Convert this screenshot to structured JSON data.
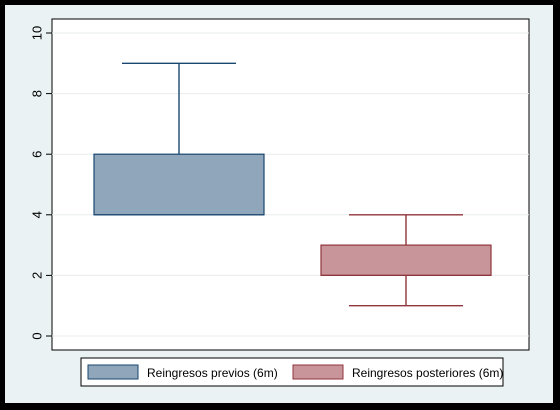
{
  "chart_data": {
    "type": "box",
    "title": "",
    "xlabel": "",
    "ylabel": "",
    "ylim": [
      0,
      10
    ],
    "yticks": [
      0,
      2,
      4,
      6,
      8,
      10
    ],
    "grid": true,
    "legend_position": "bottom",
    "series": [
      {
        "name": "Reingresos previos (6m)",
        "min": 4,
        "q1": 4,
        "median": 4,
        "q3": 6,
        "max": 9,
        "fill": "#8fa6bb",
        "stroke": "#1a476f"
      },
      {
        "name": "Reingresos posteriores (6m)",
        "min": 1,
        "q1": 2,
        "median": 2,
        "q3": 3,
        "max": 4,
        "fill": "#c7959a",
        "stroke": "#90353b"
      }
    ]
  }
}
